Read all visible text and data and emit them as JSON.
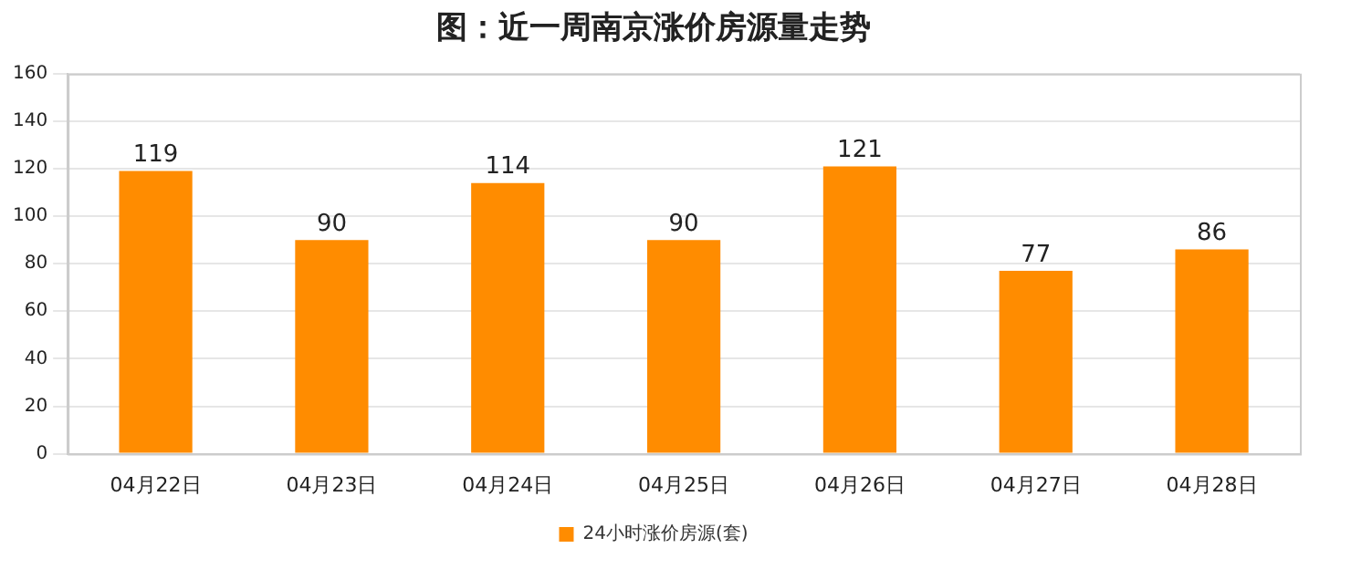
{
  "chart_data": {
    "type": "bar",
    "title": "图：近一周南京涨价房源量走势",
    "categories": [
      "04月22日",
      "04月23日",
      "04月24日",
      "04月25日",
      "04月26日",
      "04月27日",
      "04月28日"
    ],
    "series": [
      {
        "name": "24小时涨价房源(套)",
        "color": "#ff8c00",
        "values": [
          119,
          90,
          114,
          90,
          121,
          77,
          86
        ]
      }
    ],
    "ylim": [
      0,
      160
    ],
    "yticks": [
      0,
      20,
      40,
      60,
      80,
      100,
      120,
      140,
      160
    ],
    "grid": "y",
    "legend": "bottom",
    "data_labels": true
  }
}
